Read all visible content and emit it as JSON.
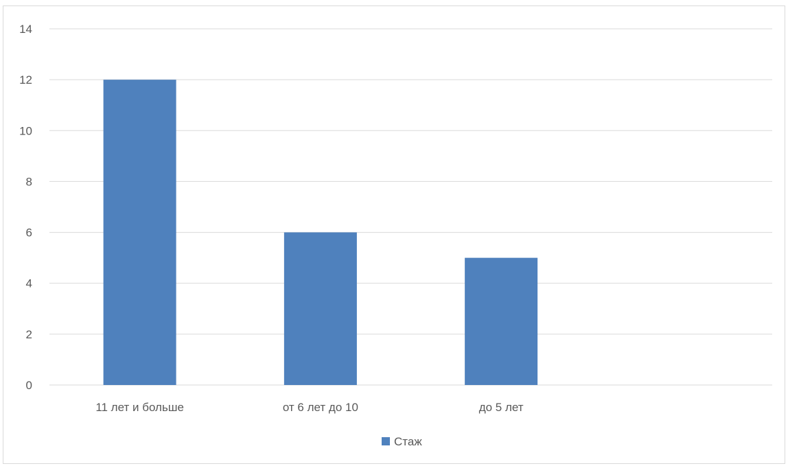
{
  "chart_data": {
    "type": "bar",
    "categories": [
      "11 лет и больше",
      "от 6 лет до 10",
      "до 5 лет"
    ],
    "series": [
      {
        "name": "Стаж",
        "values": [
          12,
          6,
          5
        ]
      }
    ],
    "ylim": [
      0,
      14
    ],
    "yticks": [
      "0",
      "2",
      "4",
      "6",
      "8",
      "10",
      "12",
      "14"
    ],
    "grid": true,
    "legend_position": "bottom",
    "colors": {
      "bar": "#4f81bd",
      "grid": "#d9d9d9",
      "text": "#595959"
    }
  }
}
